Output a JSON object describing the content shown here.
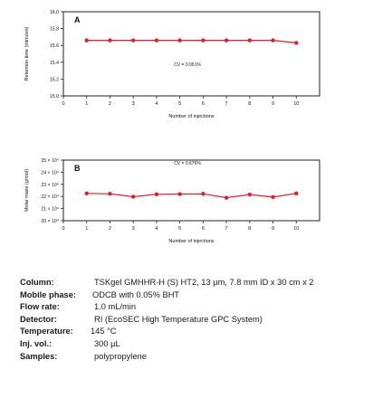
{
  "chart_data": [
    {
      "type": "line",
      "panel_label": "A",
      "xlabel": "Number of injections",
      "ylabel": "Retention time (minutes)",
      "ylim": [
        15.0,
        16.0
      ],
      "yticks": [
        15.0,
        15.2,
        15.4,
        15.6,
        15.8,
        16.0
      ],
      "ytick_labels": [
        "15.0",
        "15.2",
        "15.4",
        "15.6",
        "15.8",
        "16.0"
      ],
      "xlim": [
        0,
        11
      ],
      "xticks": [
        0,
        1,
        2,
        3,
        4,
        5,
        6,
        7,
        8,
        9,
        10
      ],
      "x": [
        1,
        2,
        3,
        4,
        5,
        6,
        7,
        8,
        9,
        10
      ],
      "series": [
        {
          "values": [
            15.66,
            15.66,
            15.66,
            15.66,
            15.66,
            15.66,
            15.66,
            15.66,
            15.66,
            15.63
          ],
          "color": "#e01c2c"
        }
      ],
      "annotation": "CV = 0.061%",
      "grid": false
    },
    {
      "type": "line",
      "panel_label": "B",
      "xlabel": "Number of injections",
      "ylabel": "Molar mass (g/mol)",
      "ylim": [
        200000,
        250000
      ],
      "yticks": [
        200000,
        210000,
        220000,
        230000,
        240000,
        250000
      ],
      "ytick_labels": [
        "20 × 10⁴",
        "21 × 10⁴",
        "22 × 10⁴",
        "23 × 10⁴",
        "24 × 10⁴",
        "25 × 10⁴"
      ],
      "xlim": [
        0,
        11
      ],
      "xticks": [
        0,
        1,
        2,
        3,
        4,
        5,
        6,
        7,
        8,
        9,
        10
      ],
      "x": [
        1,
        2,
        3,
        4,
        5,
        6,
        7,
        8,
        9,
        10
      ],
      "series": [
        {
          "values": [
            222500,
            222200,
            219800,
            221800,
            222000,
            222200,
            219000,
            221600,
            219500,
            222500
          ],
          "color": "#e01c2c"
        }
      ],
      "annotation": "CV = 0.676%",
      "grid": false
    }
  ],
  "conditions": [
    {
      "label": "Column:",
      "value": "TSKgel GMHHR-H (S) HT2, 13 µm, 7.8 mm ID x 30 cm x 2"
    },
    {
      "label": "Mobile phase:",
      "value": "ODCB with 0.05% BHT"
    },
    {
      "label": "Flow rate:",
      "value": "1.0 mL/min"
    },
    {
      "label": "Detector:",
      "value": "RI (EcoSEC High Temperature GPC System)"
    },
    {
      "label": "Temperature:",
      "value": "145 °C"
    },
    {
      "label": "Inj. vol.:",
      "value": "300 µL"
    },
    {
      "label": "Samples:",
      "value": "polypropylene"
    }
  ]
}
